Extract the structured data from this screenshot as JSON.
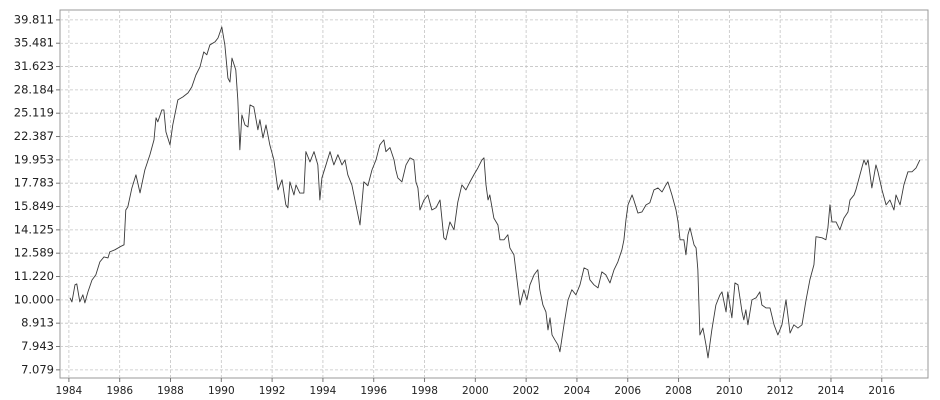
{
  "chart_data": {
    "type": "line",
    "log_scale_y": true,
    "grid": true,
    "xlim": [
      1983.65,
      2017.82
    ],
    "xticks": [
      1984,
      1986,
      1988,
      1990,
      1992,
      1994,
      1996,
      1998,
      2000,
      2002,
      2004,
      2006,
      2008,
      2010,
      2012,
      2014,
      2016
    ],
    "ylim": [
      6.8,
      41.8
    ],
    "yticks": [
      7.079,
      7.943,
      8.913,
      {
        "value": 10,
        "label": "10.000"
      },
      {
        "value": 11.22,
        "label": "11.220"
      },
      12.589,
      14.125,
      15.849,
      17.783,
      19.953,
      22.387,
      25.119,
      28.184,
      31.623,
      35.481,
      39.811
    ],
    "x": [
      1984.04,
      1984.12,
      1984.24,
      1984.31,
      1984.43,
      1984.55,
      1984.63,
      1984.75,
      1984.91,
      1985.06,
      1985.22,
      1985.38,
      1985.54,
      1985.61,
      1985.81,
      1986.01,
      1986.17,
      1986.24,
      1986.32,
      1986.48,
      1986.64,
      1986.8,
      1986.99,
      1987.19,
      1987.35,
      1987.43,
      1987.5,
      1987.66,
      1987.74,
      1987.82,
      1987.98,
      1988.09,
      1988.29,
      1988.49,
      1988.69,
      1988.84,
      1989.0,
      1989.16,
      1989.31,
      1989.43,
      1989.55,
      1989.75,
      1989.87,
      1990.02,
      1990.14,
      1990.26,
      1990.34,
      1990.42,
      1990.57,
      1990.65,
      1990.73,
      1990.81,
      1990.93,
      1991.05,
      1991.13,
      1991.28,
      1991.44,
      1991.52,
      1991.64,
      1991.76,
      1991.91,
      1992.07,
      1992.23,
      1992.39,
      1992.54,
      1992.62,
      1992.7,
      1992.86,
      1992.94,
      1993.09,
      1993.25,
      1993.33,
      1993.49,
      1993.65,
      1993.8,
      1993.88,
      1993.96,
      1994.12,
      1994.28,
      1994.43,
      1994.59,
      1994.75,
      1994.87,
      1994.98,
      1995.14,
      1995.26,
      1995.38,
      1995.46,
      1995.61,
      1995.77,
      1995.93,
      1996.09,
      1996.24,
      1996.4,
      1996.48,
      1996.64,
      1996.8,
      1996.87,
      1996.95,
      1997.11,
      1997.27,
      1997.43,
      1997.58,
      1997.66,
      1997.74,
      1997.82,
      1997.98,
      1998.13,
      1998.29,
      1998.45,
      1998.61,
      1998.76,
      1998.84,
      1999.0,
      1999.16,
      1999.31,
      1999.47,
      1999.63,
      1999.79,
      1999.94,
      2000.1,
      2000.26,
      2000.34,
      2000.42,
      2000.5,
      2000.57,
      2000.73,
      2000.89,
      2000.97,
      2001.13,
      2001.28,
      2001.36,
      2001.52,
      2001.64,
      2001.76,
      2001.91,
      2002.03,
      2002.15,
      2002.31,
      2002.46,
      2002.54,
      2002.66,
      2002.78,
      2002.86,
      2002.94,
      2003.02,
      2003.13,
      2003.25,
      2003.33,
      2003.49,
      2003.65,
      2003.8,
      2003.96,
      2004.12,
      2004.28,
      2004.43,
      2004.51,
      2004.67,
      2004.83,
      2004.98,
      2005.14,
      2005.3,
      2005.46,
      2005.61,
      2005.77,
      2005.85,
      2005.93,
      2006.01,
      2006.17,
      2006.24,
      2006.4,
      2006.56,
      2006.72,
      2006.87,
      2007.03,
      2007.19,
      2007.35,
      2007.5,
      2007.58,
      2007.74,
      2007.9,
      2007.98,
      2008.06,
      2008.21,
      2008.29,
      2008.37,
      2008.45,
      2008.61,
      2008.69,
      2008.76,
      2008.84,
      2008.96,
      2009.08,
      2009.16,
      2009.31,
      2009.47,
      2009.63,
      2009.71,
      2009.87,
      2009.94,
      2010.1,
      2010.22,
      2010.34,
      2010.5,
      2010.57,
      2010.65,
      2010.73,
      2010.89,
      2011.05,
      2011.2,
      2011.28,
      2011.44,
      2011.6,
      2011.76,
      2011.91,
      2012.07,
      2012.23,
      2012.39,
      2012.54,
      2012.7,
      2012.86,
      2013.02,
      2013.17,
      2013.33,
      2013.41,
      2013.65,
      2013.8,
      2013.88,
      2013.96,
      2014.04,
      2014.2,
      2014.35,
      2014.51,
      2014.67,
      2014.75,
      2014.91,
      2014.98,
      2015.14,
      2015.3,
      2015.38,
      2015.46,
      2015.61,
      2015.77,
      2015.85,
      2016.01,
      2016.17,
      2016.32,
      2016.48,
      2016.56,
      2016.72,
      2016.87,
      2017.03,
      2017.19,
      2017.35,
      2017.5
    ],
    "series": [
      {
        "color": "#3a3a3a",
        "values": [
          10.1,
          9.9,
          10.77,
          10.82,
          9.9,
          10.25,
          9.85,
          10.4,
          11.03,
          11.31,
          12.06,
          12.36,
          12.3,
          12.67,
          12.8,
          12.99,
          13.12,
          15.58,
          15.82,
          17.37,
          18.53,
          16.95,
          18.98,
          20.46,
          22.02,
          24.55,
          24.07,
          25.53,
          25.53,
          22.91,
          21.48,
          23.72,
          26.83,
          27.23,
          27.77,
          28.61,
          30.33,
          31.56,
          33.99,
          33.51,
          35.18,
          35.71,
          36.4,
          38.44,
          35.18,
          29.87,
          29.29,
          32.97,
          31.1,
          26.83,
          20.97,
          24.91,
          23.71,
          23.47,
          26.17,
          25.91,
          23.14,
          24.32,
          22.24,
          23.71,
          21.48,
          19.95,
          17.2,
          18.08,
          15.98,
          15.75,
          17.9,
          16.78,
          17.63,
          16.94,
          16.94,
          20.78,
          19.75,
          20.78,
          19.46,
          16.37,
          18.25,
          19.46,
          20.78,
          19.46,
          20.47,
          19.46,
          19.95,
          18.53,
          17.63,
          16.37,
          15.2,
          14.47,
          17.9,
          17.56,
          18.98,
          19.95,
          21.48,
          22.02,
          20.78,
          21.2,
          19.95,
          18.98,
          18.25,
          17.9,
          19.46,
          20.15,
          19.95,
          17.9,
          17.37,
          15.58,
          16.37,
          16.78,
          15.58,
          15.75,
          16.37,
          13.58,
          13.45,
          14.69,
          14.13,
          16.2,
          17.63,
          17.2,
          17.9,
          18.53,
          19.17,
          19.95,
          20.15,
          17.63,
          16.37,
          16.78,
          14.97,
          14.47,
          13.45,
          13.45,
          13.79,
          12.92,
          12.49,
          11.04,
          9.75,
          10.51,
          10.0,
          10.77,
          11.31,
          11.6,
          10.51,
          9.75,
          9.42,
          8.62,
          9.15,
          8.41,
          8.21,
          8.01,
          7.74,
          8.84,
          10.0,
          10.51,
          10.25,
          10.77,
          11.71,
          11.6,
          11.04,
          10.77,
          10.61,
          11.48,
          11.31,
          10.87,
          11.6,
          12.06,
          12.8,
          13.45,
          14.84,
          15.98,
          16.78,
          16.37,
          15.35,
          15.43,
          15.98,
          16.15,
          17.2,
          17.37,
          17.03,
          17.63,
          17.9,
          16.78,
          15.58,
          14.69,
          13.45,
          13.45,
          12.49,
          13.79,
          14.27,
          13.12,
          12.92,
          11.6,
          8.41,
          8.7,
          8.01,
          7.51,
          8.62,
          9.75,
          10.25,
          10.4,
          9.42,
          10.4,
          9.15,
          10.87,
          10.77,
          9.42,
          9.06,
          9.52,
          8.84,
          10.0,
          10.1,
          10.4,
          9.75,
          9.61,
          9.61,
          8.84,
          8.41,
          8.84,
          10.0,
          8.49,
          8.84,
          8.7,
          8.84,
          10.0,
          11.04,
          11.89,
          13.66,
          13.58,
          13.45,
          14.27,
          15.98,
          14.69,
          14.69,
          14.13,
          14.97,
          15.43,
          16.37,
          16.78,
          17.2,
          18.53,
          19.95,
          19.46,
          19.95,
          17.37,
          19.46,
          18.81,
          17.2,
          15.98,
          16.37,
          15.58,
          16.78,
          15.98,
          17.63,
          18.81,
          18.81,
          19.17,
          19.95
        ]
      }
    ]
  }
}
